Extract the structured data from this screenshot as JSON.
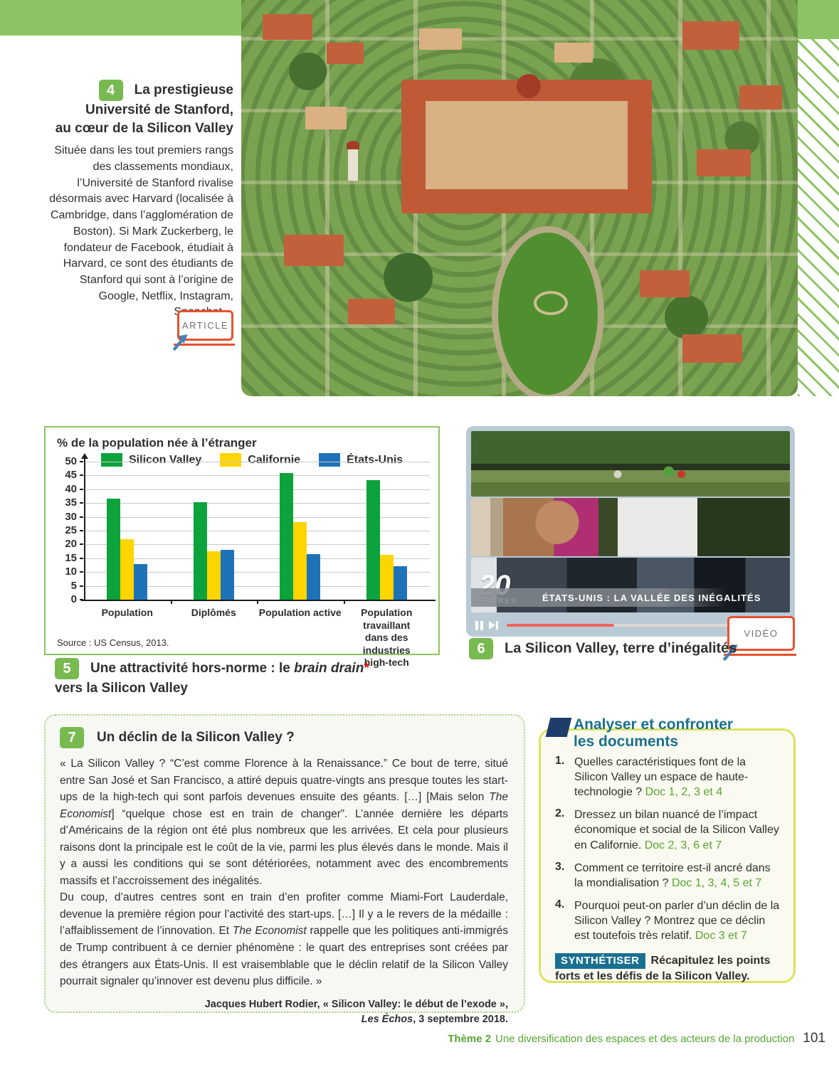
{
  "page": {
    "number": "101",
    "footer_theme": "Thème 2",
    "footer_text": "Une diversification des espaces et des acteurs de la production"
  },
  "doc4": {
    "number": "4",
    "title_line1": "La prestigieuse",
    "title_line2": "Université de Stanford,",
    "title_line3": "au cœur de la Silicon Valley",
    "body": "Située dans les tout premiers rangs des classements mondiaux, l’Université de Stanford rivalise désormais avec Harvard (localisée à Cambridge, dans l’agglomération de Boston). Si Mark Zuckerberg, le fondateur de Facebook, étudiait à Harvard, ce sont des étudiants de Stanford qui sont à l’origine de Google, Netflix, Instagram, Snapchat…",
    "article_label": "ARTICLE"
  },
  "chart_data": {
    "type": "bar",
    "title": "% de la population née à l’étranger",
    "categories": [
      "Population",
      "Diplômés",
      "Population active",
      "Population travaillant\ndans des industries\nhigh-tech"
    ],
    "series": [
      {
        "name": "Silicon Valley",
        "color": "#0ca33c",
        "values": [
          36.5,
          35.2,
          45.8,
          43.3
        ]
      },
      {
        "name": "Californie",
        "color": "#ffd500",
        "values": [
          22,
          17.5,
          28,
          16.3
        ]
      },
      {
        "name": "États-Unis",
        "color": "#1e73b8",
        "values": [
          13,
          18,
          16.5,
          12
        ]
      }
    ],
    "ylim": [
      0,
      50
    ],
    "ytick": 5,
    "grid": true,
    "legend_position": "top",
    "source": "Source : US Census, 2013."
  },
  "doc5": {
    "number": "5",
    "caption_line1": [
      {
        "t": "Une attractivité hors-norme : le "
      },
      {
        "t": "brain drain",
        "i": true
      },
      {
        "t": "*",
        "red": true
      }
    ],
    "caption_line2": "vers la Silicon Valley"
  },
  "doc6": {
    "number": "6",
    "caption": "La Silicon Valley, terre d’inégalités",
    "video_label": "VIDÉO",
    "overlay_title": "ÉTATS-UNIS : LA VALLÉE DES INÉGALITÉS",
    "logo_number": "20",
    "logo_sub": "HEURES"
  },
  "doc7": {
    "number": "7",
    "title": "Un déclin de la Silicon Valley ?",
    "paragraph1": [
      {
        "t": "« La Silicon Valley ? “C’est comme Florence à la Renaissance.” Ce bout de terre, situé entre San José et San Francisco, a attiré depuis quatre-vingts ans presque toutes les start-ups de la high-tech qui sont parfois devenues ensuite des géants. […] [Mais selon "
      },
      {
        "t": "The Economist",
        "i": true
      },
      {
        "t": "] “quelque chose est en train de changer”. L’année dernière les départs d’Américains de la région ont été plus nombreux que les arrivées. Et cela pour plusieurs raisons dont la principale est le coût de la vie, parmi les plus élevés dans le monde. Mais il y a aussi les conditions qui se sont détériorées, notamment avec des encombrements massifs et l’accroissement des inégalités."
      }
    ],
    "paragraph2": [
      {
        "t": "Du coup, d’autres centres sont en train d’en profiter comme Miami-Fort Lauderdale, devenue la première région pour l’activité des start-ups. […] Il y a le revers de la médaille : l’affaiblissement de l’innovation. Et "
      },
      {
        "t": "The Economist",
        "i": true
      },
      {
        "t": " rappelle que les politiques anti-immigrés de Trump contribuent à ce dernier phénomène : le quart des entreprises sont créées par des étrangers aux États-Unis. Il est vraisemblable que le déclin relatif de la Silicon Valley pourrait signaler qu’innover est devenu plus difficile. »"
      }
    ],
    "citation": [
      {
        "t": "Jacques Hubert Rodier, « Silicon Valley: le début de l’exode »,\n"
      },
      {
        "t": "Les Échos",
        "i": true
      },
      {
        "t": ", 3 septembre 2018."
      }
    ]
  },
  "sidebar": {
    "title_line1": "Analyser et confronter",
    "title_line2": "les documents",
    "questions": [
      {
        "num": "1.",
        "segments": [
          {
            "t": "Quelles caractéristiques font de la Silicon Valley un espace de haute-technologie ? "
          },
          {
            "t": "Doc 1, 2, 3 et 4",
            "ref": true
          }
        ]
      },
      {
        "num": "2.",
        "segments": [
          {
            "t": "Dressez un bilan nuancé de l’impact économique et social de la Silicon Valley en Californie. "
          },
          {
            "t": "Doc 2, 3, 6 et 7",
            "ref": true
          }
        ]
      },
      {
        "num": "3.",
        "segments": [
          {
            "t": "Comment ce territoire est-il ancré dans la mondialisation ? "
          },
          {
            "t": "Doc 1, 3, 4, 5 et 7",
            "ref": true
          }
        ]
      },
      {
        "num": "4.",
        "segments": [
          {
            "t": "Pourquoi peut-on parler d’un déclin de la Silicon Valley ? Montrez que ce déclin est toutefois très relatif. "
          },
          {
            "t": "Doc 3 et 7",
            "ref": true
          }
        ]
      }
    ],
    "synth_label": "SYNTHÉTISER",
    "synth_text": "Récapitulez les points forts et les défis de la Silicon Valley."
  }
}
